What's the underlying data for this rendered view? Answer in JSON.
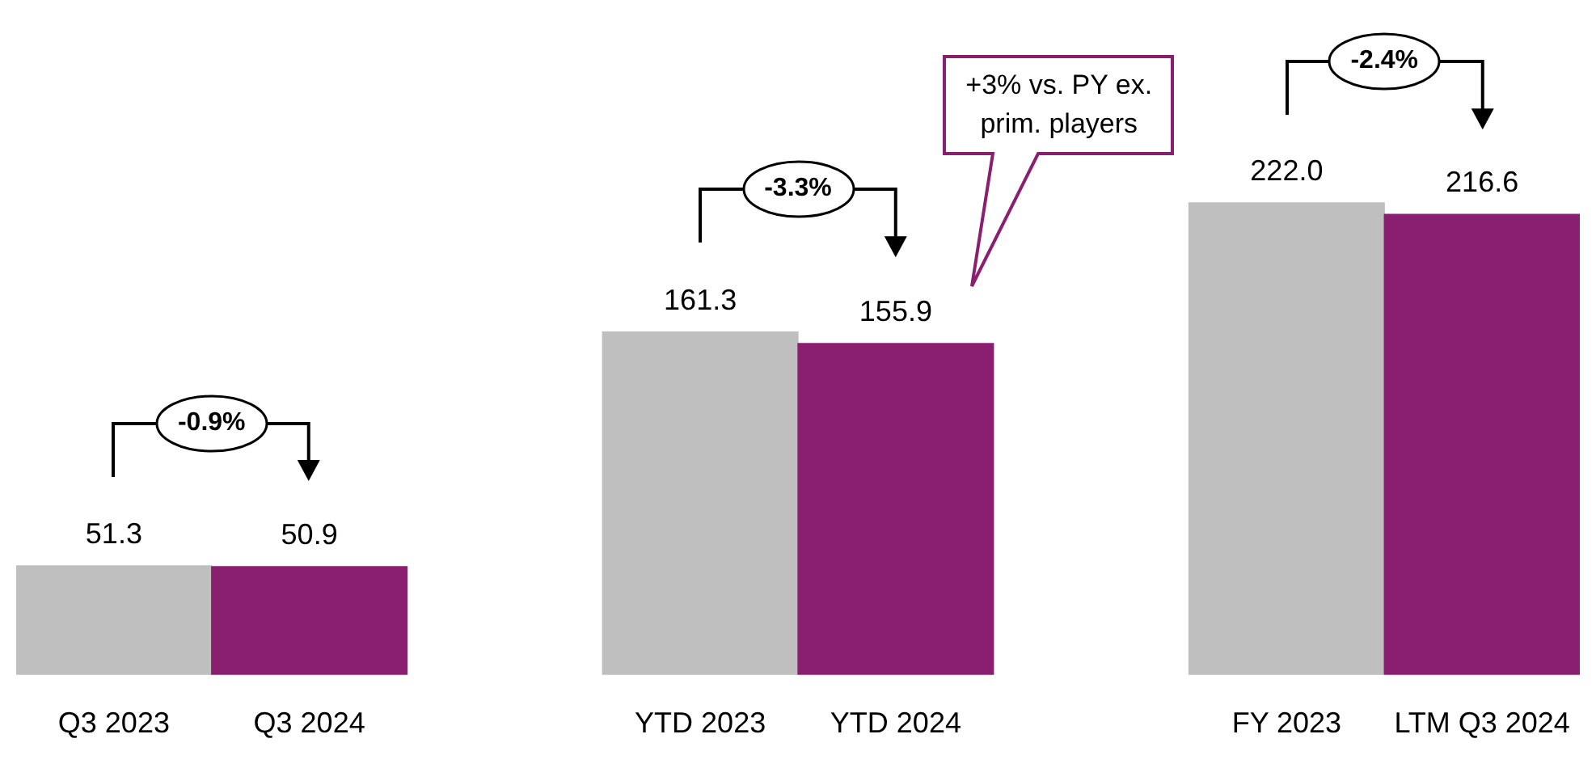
{
  "chart_data": {
    "type": "bar",
    "categories": [
      "Q3 2023",
      "Q3 2024",
      null,
      "YTD 2023",
      "YTD 2024",
      null,
      "FY 2023",
      "LTM Q3 2024"
    ],
    "values": [
      51.3,
      50.9,
      null,
      161.3,
      155.9,
      null,
      222.0,
      216.6
    ],
    "colors": [
      "#bfbfbf",
      "#8b1f6f",
      null,
      "#bfbfbf",
      "#8b1f6f",
      null,
      "#bfbfbf",
      "#8b1f6f"
    ],
    "value_labels": [
      "51.3",
      "50.9",
      null,
      "161.3",
      "155.9",
      null,
      "222.0",
      "216.6"
    ],
    "legend": false,
    "grid": false,
    "tick_labels": "x",
    "annotations": [
      "-0.9%",
      "-3.3%",
      "-2.4%",
      "+3% vs. PY ex. prim. players"
    ]
  }
}
